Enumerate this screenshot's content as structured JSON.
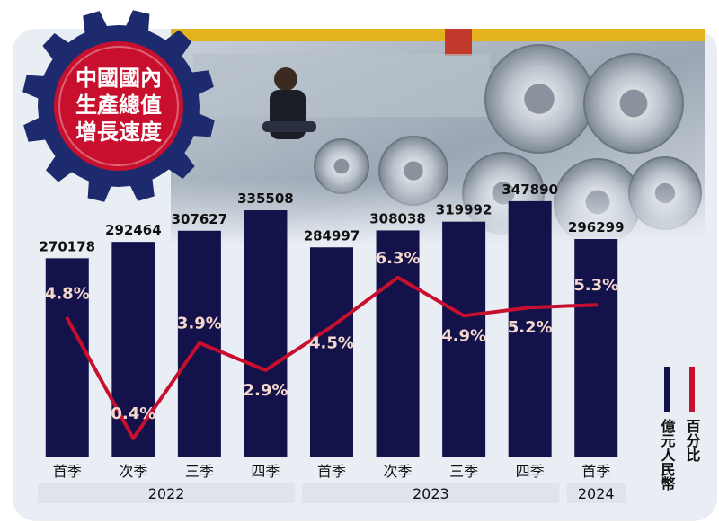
{
  "badge": {
    "line1": "中國國內",
    "line2": "生產總值",
    "line3": "增長速度"
  },
  "legend": {
    "items": [
      {
        "label": "億元人民幣",
        "color": "#13124a"
      },
      {
        "label": "百分比",
        "color": "#c8102e"
      }
    ]
  },
  "chart_data": {
    "type": "bar",
    "categories": [
      "首季",
      "次季",
      "三季",
      "四季",
      "首季",
      "次季",
      "三季",
      "四季",
      "首季"
    ],
    "year_groups": [
      {
        "label": "2022",
        "start": 0,
        "end": 3
      },
      {
        "label": "2023",
        "start": 4,
        "end": 7
      },
      {
        "label": "2024",
        "start": 8,
        "end": 8
      }
    ],
    "series": [
      {
        "name": "億元人民幣",
        "type": "bar",
        "color": "#13124a",
        "values": [
          270178,
          292464,
          307627,
          335508,
          284997,
          308038,
          319992,
          347890,
          296299
        ],
        "labels": [
          "270178",
          "292464",
          "307627",
          "335508",
          "284997",
          "308038",
          "319992",
          "347890",
          "296299"
        ]
      },
      {
        "name": "百分比",
        "type": "line",
        "color": "#c8102e",
        "values": [
          4.8,
          0.4,
          3.9,
          2.9,
          4.5,
          6.3,
          4.9,
          5.2,
          5.3
        ],
        "labels": [
          "4.8%",
          "0.4%",
          "3.9%",
          "2.9%",
          "4.5%",
          "6.3%",
          "4.9%",
          "5.2%",
          "5.3%"
        ]
      }
    ],
    "bar_axis_range": [
      0,
      360000
    ],
    "line_axis_range": [
      0,
      7
    ],
    "grid": false,
    "legend_placement": "right",
    "colors": {
      "panel": "#e9edf4",
      "year_band": "#dfe3ec",
      "badge_gear": "#1e2a6e",
      "badge_fill": "#c8102e",
      "value_text": "#111111",
      "percent_text": "#f4d7cd"
    }
  }
}
